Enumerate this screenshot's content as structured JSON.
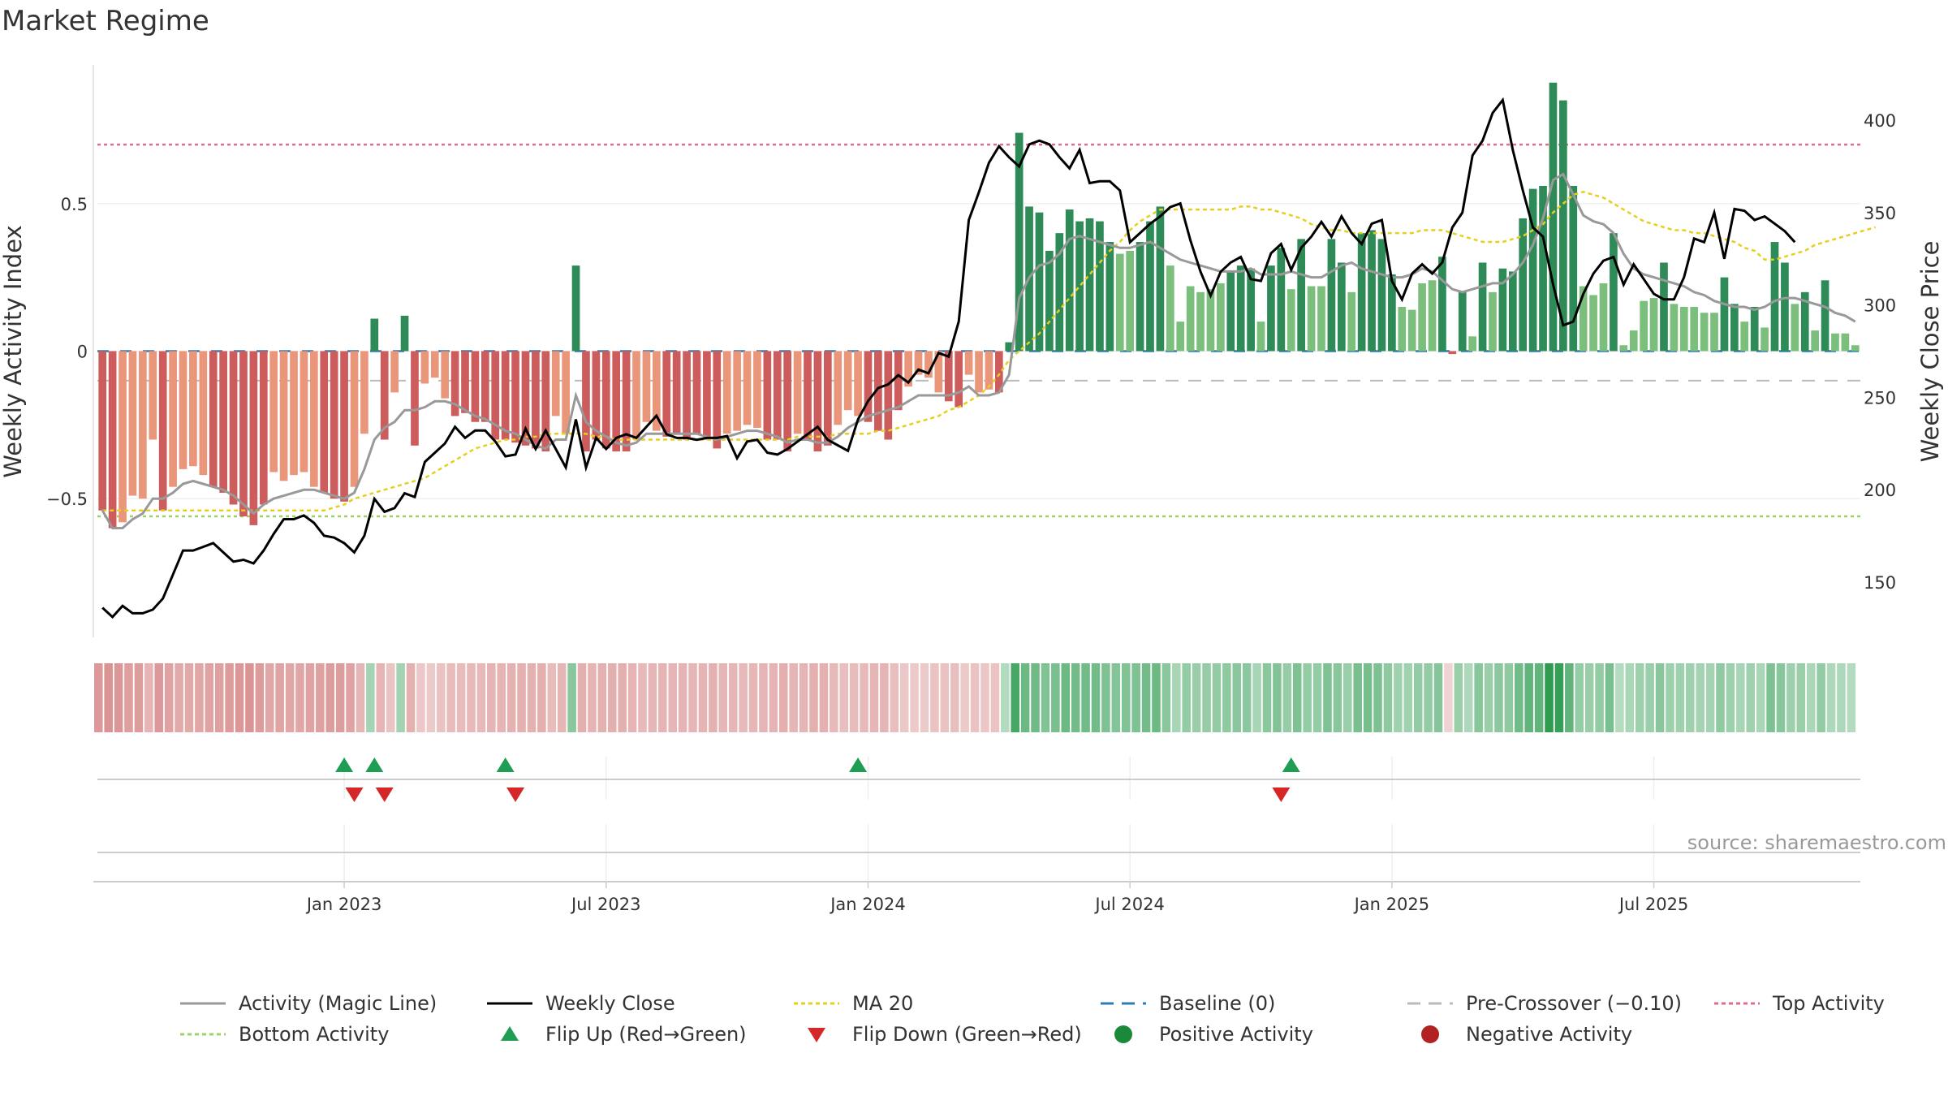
{
  "chart_data": {
    "type": "bar",
    "title": "Market Regime",
    "ylabel_left": "Weekly Activity Index",
    "ylabel_right": "Weekly Close Price",
    "source": "source: sharemaestro.com",
    "x_ticks": [
      "Jan 2023",
      "Jul 2023",
      "Jan 2024",
      "Jul 2024",
      "Jan 2025",
      "Jul 2025"
    ],
    "x_tick_index": [
      24,
      50,
      76,
      102,
      128,
      154
    ],
    "left_ticks": [
      {
        "value": 0.5,
        "label": "0.5"
      },
      {
        "value": 0,
        "label": "0"
      },
      {
        "value": -0.5,
        "label": "−0.5"
      }
    ],
    "left_ylim": [
      -0.97,
      0.97
    ],
    "right_ticks": [
      {
        "value": 400,
        "label": "400"
      },
      {
        "value": 350,
        "label": "350"
      },
      {
        "value": 300,
        "label": "300"
      },
      {
        "value": 250,
        "label": "250"
      },
      {
        "value": 200,
        "label": "200"
      },
      {
        "value": 150,
        "label": "150"
      }
    ],
    "right_ylim": [
      120,
      430
    ],
    "reference_lines": {
      "top": 0.7,
      "bottom": -0.56,
      "pre_crossover": -0.1,
      "baseline": 0
    },
    "activity": [
      -0.54,
      -0.6,
      -0.58,
      -0.49,
      -0.5,
      -0.3,
      -0.54,
      -0.46,
      -0.4,
      -0.39,
      -0.42,
      -0.46,
      -0.48,
      -0.52,
      -0.56,
      -0.59,
      -0.52,
      -0.41,
      -0.44,
      -0.42,
      -0.41,
      -0.46,
      -0.48,
      -0.5,
      -0.51,
      -0.46,
      -0.28,
      0.11,
      -0.3,
      -0.14,
      0.12,
      -0.32,
      -0.11,
      -0.09,
      -0.16,
      -0.22,
      -0.21,
      -0.24,
      -0.24,
      -0.3,
      -0.3,
      -0.31,
      -0.32,
      -0.33,
      -0.34,
      -0.22,
      -0.28,
      0.29,
      -0.34,
      -0.3,
      -0.33,
      -0.34,
      -0.34,
      -0.3,
      -0.24,
      -0.27,
      -0.29,
      -0.28,
      -0.3,
      -0.28,
      -0.3,
      -0.33,
      -0.28,
      -0.27,
      -0.25,
      -0.26,
      -0.3,
      -0.3,
      -0.34,
      -0.28,
      -0.3,
      -0.34,
      -0.32,
      -0.25,
      -0.2,
      -0.22,
      -0.24,
      -0.27,
      -0.3,
      -0.2,
      -0.12,
      -0.08,
      -0.09,
      -0.14,
      -0.17,
      -0.19,
      -0.08,
      -0.14,
      -0.13,
      -0.14,
      0.03,
      0.74,
      0.49,
      0.47,
      0.34,
      0.4,
      0.48,
      0.44,
      0.45,
      0.44,
      0.37,
      0.33,
      0.34,
      0.37,
      0.44,
      0.49,
      0.29,
      0.1,
      0.22,
      0.2,
      0.21,
      0.23,
      0.27,
      0.29,
      0.28,
      0.1,
      0.29,
      0.35,
      0.21,
      0.38,
      0.22,
      0.22,
      0.38,
      0.3,
      0.2,
      0.4,
      0.41,
      0.38,
      0.26,
      0.15,
      0.14,
      0.23,
      0.24,
      0.32,
      -0.01,
      0.2,
      0.05,
      0.3,
      0.2,
      0.28,
      0.27,
      0.45,
      0.55,
      0.56,
      0.91,
      0.85,
      0.56,
      0.22,
      0.19,
      0.23,
      0.4,
      0.02,
      0.07,
      0.17,
      0.18,
      0.3,
      0.16,
      0.15,
      0.15,
      0.13,
      0.13,
      0.25,
      0.16,
      0.1,
      0.15,
      0.08,
      0.37,
      0.3,
      0.16,
      0.2,
      0.07,
      0.24,
      0.06,
      0.06,
      0.02
    ],
    "magic_line": [
      -0.54,
      -0.6,
      -0.6,
      -0.57,
      -0.55,
      -0.5,
      -0.5,
      -0.48,
      -0.45,
      -0.44,
      -0.45,
      -0.46,
      -0.47,
      -0.49,
      -0.52,
      -0.55,
      -0.52,
      -0.5,
      -0.49,
      -0.48,
      -0.47,
      -0.47,
      -0.48,
      -0.49,
      -0.5,
      -0.48,
      -0.4,
      -0.3,
      -0.26,
      -0.24,
      -0.2,
      -0.2,
      -0.19,
      -0.17,
      -0.17,
      -0.18,
      -0.2,
      -0.22,
      -0.23,
      -0.25,
      -0.27,
      -0.28,
      -0.3,
      -0.32,
      -0.33,
      -0.3,
      -0.3,
      -0.15,
      -0.24,
      -0.27,
      -0.29,
      -0.31,
      -0.32,
      -0.31,
      -0.28,
      -0.28,
      -0.28,
      -0.28,
      -0.28,
      -0.28,
      -0.29,
      -0.3,
      -0.29,
      -0.28,
      -0.27,
      -0.27,
      -0.28,
      -0.29,
      -0.31,
      -0.3,
      -0.3,
      -0.31,
      -0.31,
      -0.29,
      -0.26,
      -0.24,
      -0.22,
      -0.21,
      -0.2,
      -0.19,
      -0.17,
      -0.15,
      -0.15,
      -0.15,
      -0.15,
      -0.14,
      -0.12,
      -0.15,
      -0.15,
      -0.14,
      -0.08,
      0.18,
      0.25,
      0.29,
      0.3,
      0.33,
      0.38,
      0.39,
      0.38,
      0.37,
      0.36,
      0.35,
      0.35,
      0.36,
      0.37,
      0.35,
      0.33,
      0.31,
      0.3,
      0.29,
      0.28,
      0.27,
      0.27,
      0.27,
      0.28,
      0.26,
      0.26,
      0.26,
      0.27,
      0.26,
      0.25,
      0.25,
      0.27,
      0.29,
      0.3,
      0.28,
      0.27,
      0.26,
      0.25,
      0.25,
      0.26,
      0.28,
      0.27,
      0.24,
      0.21,
      0.2,
      0.21,
      0.22,
      0.23,
      0.23,
      0.26,
      0.3,
      0.36,
      0.45,
      0.58,
      0.6,
      0.53,
      0.46,
      0.44,
      0.43,
      0.4,
      0.33,
      0.28,
      0.26,
      0.25,
      0.24,
      0.23,
      0.22,
      0.2,
      0.19,
      0.17,
      0.16,
      0.15,
      0.15,
      0.14,
      0.15,
      0.17,
      0.18,
      0.18,
      0.17,
      0.16,
      0.15,
      0.13,
      0.12,
      0.1
    ],
    "close": [
      136,
      131,
      137,
      133,
      133,
      135,
      141,
      154,
      167,
      167,
      169,
      171,
      166,
      161,
      162,
      160,
      167,
      176,
      184,
      184,
      186,
      182,
      175,
      174,
      171,
      166,
      175,
      195,
      188,
      190,
      198,
      196,
      215,
      220,
      225,
      234,
      228,
      232,
      232,
      226,
      218,
      219,
      233,
      222,
      232,
      222,
      212,
      238,
      212,
      228,
      222,
      228,
      230,
      228,
      234,
      240,
      230,
      228,
      228,
      227,
      228,
      228,
      229,
      217,
      226,
      227,
      220,
      219,
      222,
      226,
      230,
      234,
      227,
      224,
      221,
      238,
      248,
      255,
      257,
      262,
      258,
      265,
      263,
      274,
      272,
      291,
      346,
      361,
      377,
      386,
      380,
      375,
      387,
      389,
      387,
      380,
      374,
      384,
      366,
      367,
      367,
      362,
      334,
      339,
      344,
      348,
      353,
      355,
      335,
      318,
      305,
      318,
      323,
      326,
      314,
      313,
      328,
      333,
      319,
      331,
      337,
      345,
      337,
      348,
      339,
      333,
      344,
      346,
      313,
      303,
      317,
      322,
      317,
      323,
      342,
      350,
      381,
      389,
      404,
      411,
      384,
      362,
      342,
      337,
      311,
      289,
      291,
      306,
      317,
      324,
      326,
      311,
      322,
      314,
      306,
      303,
      303,
      315,
      336,
      334,
      350,
      325,
      352,
      351,
      346,
      348,
      344,
      340,
      334
    ],
    "ma20": [
      -0.54,
      -0.54,
      -0.54,
      -0.54,
      -0.54,
      -0.54,
      -0.54,
      -0.54,
      -0.54,
      -0.54,
      -0.54,
      -0.54,
      -0.54,
      -0.54,
      -0.54,
      -0.54,
      -0.54,
      -0.54,
      -0.54,
      -0.54,
      -0.54,
      -0.54,
      -0.54,
      -0.53,
      -0.52,
      -0.5,
      -0.49,
      -0.48,
      -0.47,
      -0.46,
      -0.45,
      -0.44,
      -0.43,
      -0.41,
      -0.39,
      -0.37,
      -0.35,
      -0.33,
      -0.32,
      -0.31,
      -0.3,
      -0.3,
      -0.29,
      -0.29,
      -0.28,
      -0.28,
      -0.28,
      -0.28,
      -0.28,
      -0.29,
      -0.29,
      -0.3,
      -0.3,
      -0.3,
      -0.3,
      -0.3,
      -0.3,
      -0.3,
      -0.3,
      -0.3,
      -0.3,
      -0.3,
      -0.3,
      -0.3,
      -0.3,
      -0.3,
      -0.3,
      -0.3,
      -0.3,
      -0.29,
      -0.29,
      -0.29,
      -0.29,
      -0.28,
      -0.28,
      -0.28,
      -0.28,
      -0.27,
      -0.27,
      -0.26,
      -0.25,
      -0.24,
      -0.23,
      -0.22,
      -0.2,
      -0.19,
      -0.17,
      -0.15,
      -0.12,
      -0.08,
      -0.03,
      0.0,
      0.03,
      0.06,
      0.1,
      0.14,
      0.18,
      0.22,
      0.26,
      0.3,
      0.34,
      0.37,
      0.41,
      0.44,
      0.46,
      0.48,
      0.48,
      0.48,
      0.48,
      0.48,
      0.48,
      0.48,
      0.48,
      0.49,
      0.49,
      0.48,
      0.48,
      0.47,
      0.46,
      0.45,
      0.43,
      0.42,
      0.41,
      0.41,
      0.4,
      0.4,
      0.4,
      0.4,
      0.4,
      0.4,
      0.4,
      0.41,
      0.41,
      0.41,
      0.4,
      0.39,
      0.38,
      0.37,
      0.37,
      0.37,
      0.38,
      0.39,
      0.41,
      0.43,
      0.47,
      0.5,
      0.53,
      0.54,
      0.53,
      0.52,
      0.5,
      0.48,
      0.46,
      0.44,
      0.43,
      0.42,
      0.41,
      0.41,
      0.4,
      0.4,
      0.39,
      0.38,
      0.37,
      0.35,
      0.34,
      0.31,
      0.31,
      0.32,
      0.33,
      0.34,
      0.36,
      0.37,
      0.38,
      0.39,
      0.4,
      0.41,
      0.42
    ],
    "flip_up_index": [
      24,
      27,
      40,
      75,
      118
    ],
    "flip_down_index": [
      25,
      28,
      41,
      117
    ]
  },
  "legend": [
    {
      "label": "Activity (Magic Line)",
      "marker": "line",
      "color": "#999999"
    },
    {
      "label": "Weekly Close",
      "marker": "line",
      "color": "#000000"
    },
    {
      "label": "MA 20",
      "marker": "dotted",
      "color": "#e6cf1f"
    },
    {
      "label": "Baseline (0)",
      "marker": "dashed",
      "color": "#2f7bb6"
    },
    {
      "label": "Pre-Crossover (−0.10)",
      "marker": "dashed",
      "color": "#bbbbbb"
    },
    {
      "label": "Top Activity",
      "marker": "dotted",
      "color": "#e06c8a"
    },
    {
      "label": "Bottom Activity",
      "marker": "dotted",
      "color": "#9bd36a"
    },
    {
      "label": "Flip Up (Red→Green)",
      "marker": "triangle-up",
      "color": "#1f9e53"
    },
    {
      "label": "Flip Down (Green→Red)",
      "marker": "triangle-down",
      "color": "#d62728"
    },
    {
      "label": "Positive Activity",
      "marker": "circle",
      "color": "#1a8a3a"
    },
    {
      "label": "Negative Activity",
      "marker": "circle",
      "color": "#b22222"
    }
  ],
  "colors": {
    "pos_strong": "#2e8b57",
    "pos_light": "#7cbf7c",
    "neg_strong": "#cd5c5c",
    "neg_light": "#e9967a",
    "magic_line": "#999999",
    "close": "#000000",
    "ma20": "#e6cf1f"
  }
}
